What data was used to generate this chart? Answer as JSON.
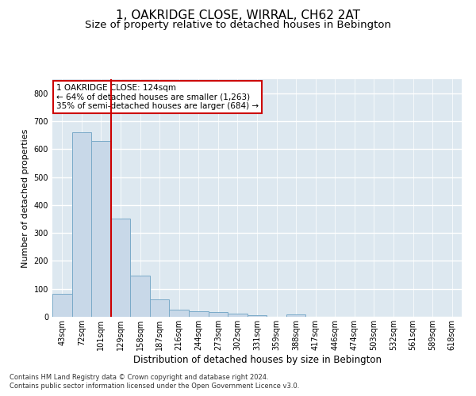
{
  "title": "1, OAKRIDGE CLOSE, WIRRAL, CH62 2AT",
  "subtitle": "Size of property relative to detached houses in Bebington",
  "xlabel": "Distribution of detached houses by size in Bebington",
  "ylabel": "Number of detached properties",
  "categories": [
    "43sqm",
    "72sqm",
    "101sqm",
    "129sqm",
    "158sqm",
    "187sqm",
    "216sqm",
    "244sqm",
    "273sqm",
    "302sqm",
    "331sqm",
    "359sqm",
    "388sqm",
    "417sqm",
    "446sqm",
    "474sqm",
    "503sqm",
    "532sqm",
    "561sqm",
    "589sqm",
    "618sqm"
  ],
  "values": [
    83,
    660,
    628,
    350,
    148,
    62,
    25,
    20,
    17,
    11,
    6,
    0,
    8,
    0,
    0,
    0,
    0,
    0,
    0,
    0,
    0
  ],
  "bar_color": "#c8d8e8",
  "bar_edge_color": "#7aaac8",
  "vline_x": 2.5,
  "vline_color": "#cc0000",
  "annotation_text": "1 OAKRIDGE CLOSE: 124sqm\n← 64% of detached houses are smaller (1,263)\n35% of semi-detached houses are larger (684) →",
  "annotation_box_color": "#ffffff",
  "annotation_box_edge": "#cc0000",
  "ylim": [
    0,
    850
  ],
  "yticks": [
    0,
    100,
    200,
    300,
    400,
    500,
    600,
    700,
    800
  ],
  "background_color": "#dde8f0",
  "grid_color": "#ffffff",
  "footer1": "Contains HM Land Registry data © Crown copyright and database right 2024.",
  "footer2": "Contains public sector information licensed under the Open Government Licence v3.0.",
  "title_fontsize": 11,
  "subtitle_fontsize": 9.5,
  "ylabel_fontsize": 8,
  "xlabel_fontsize": 8.5,
  "tick_fontsize": 7,
  "annotation_fontsize": 7.5,
  "footer_fontsize": 6
}
